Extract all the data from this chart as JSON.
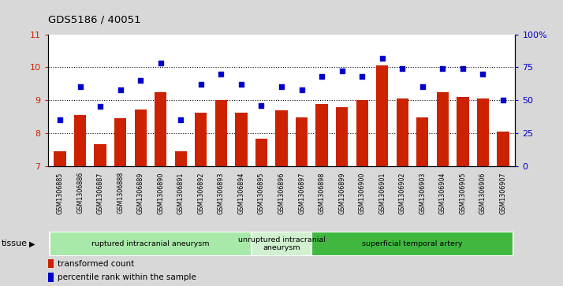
{
  "title": "GDS5186 / 40051",
  "samples": [
    "GSM1306885",
    "GSM1306886",
    "GSM1306887",
    "GSM1306888",
    "GSM1306889",
    "GSM1306890",
    "GSM1306891",
    "GSM1306892",
    "GSM1306893",
    "GSM1306894",
    "GSM1306895",
    "GSM1306896",
    "GSM1306897",
    "GSM1306898",
    "GSM1306899",
    "GSM1306900",
    "GSM1306901",
    "GSM1306902",
    "GSM1306903",
    "GSM1306904",
    "GSM1306905",
    "GSM1306906",
    "GSM1306907"
  ],
  "bar_values": [
    7.45,
    8.55,
    7.65,
    8.45,
    8.72,
    9.25,
    7.45,
    8.62,
    9.0,
    8.62,
    7.82,
    8.68,
    8.48,
    8.88,
    8.78,
    9.0,
    10.05,
    9.05,
    8.48,
    9.25,
    9.1,
    9.05,
    8.05
  ],
  "dot_values_pct": [
    35,
    60,
    45,
    58,
    65,
    78,
    35,
    62,
    70,
    62,
    46,
    60,
    58,
    68,
    72,
    68,
    82,
    74,
    60,
    74,
    74,
    70,
    50
  ],
  "groups": [
    {
      "label": "ruptured intracranial aneurysm",
      "start": 0,
      "end": 10,
      "color": "#a8e8a8"
    },
    {
      "label": "unruptured intracranial\naneurysm",
      "start": 10,
      "end": 13,
      "color": "#d0f0d0"
    },
    {
      "label": "superficial temporal artery",
      "start": 13,
      "end": 23,
      "color": "#40b840"
    }
  ],
  "bar_color": "#cc2200",
  "dot_color": "#0000cc",
  "ylim_left": [
    7,
    11
  ],
  "ylim_right": [
    0,
    100
  ],
  "yticks_left": [
    7,
    8,
    9,
    10,
    11
  ],
  "yticks_right": [
    0,
    25,
    50,
    75,
    100
  ],
  "ytick_labels_right": [
    "0",
    "25",
    "50",
    "75",
    "100%"
  ],
  "background_color": "#d8d8d8",
  "xtick_bg": "#d0d0d0",
  "plot_bg": "#ffffff",
  "tissue_label": "tissue"
}
